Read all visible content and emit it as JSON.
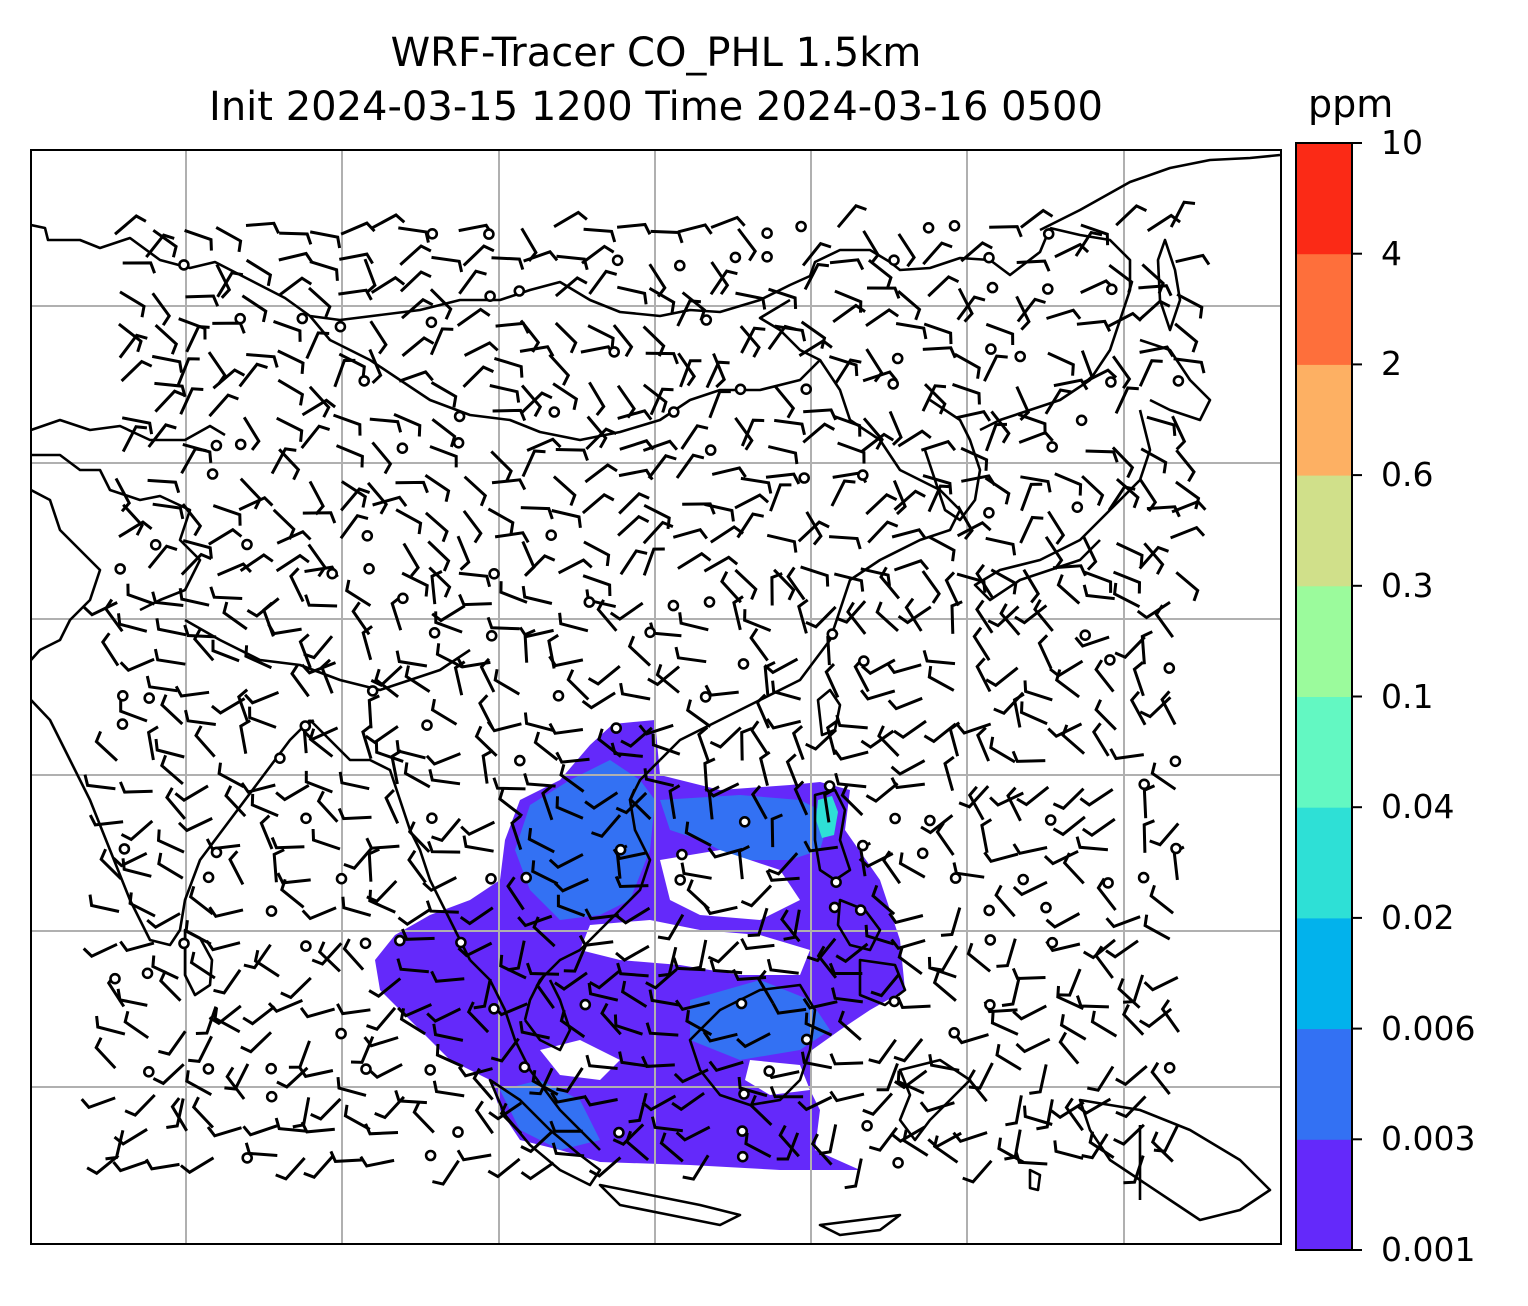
{
  "title_line1": "WRF-Tracer CO_PHL 1.5km",
  "title_line2": "Init 2024-03-15 1200 Time 2024-03-16 0500",
  "colorbar": {
    "unit": "ppm",
    "levels": [
      {
        "label": "0.001",
        "color": "#6429fa"
      },
      {
        "label": "0.003",
        "color": "#3371f3"
      },
      {
        "label": "0.006",
        "color": "#02b2ec"
      },
      {
        "label": "0.02",
        "color": "#2ee0d6"
      },
      {
        "label": "0.04",
        "color": "#63f8c2"
      },
      {
        "label": "0.1",
        "color": "#9bfb9c"
      },
      {
        "label": "0.3",
        "color": "#d0e08a"
      },
      {
        "label": "0.6",
        "color": "#fdb063"
      },
      {
        "label": "2",
        "color": "#fe6f3b"
      },
      {
        "label": "4",
        "color": "#fb2a16"
      },
      {
        "label": "10",
        "color": null
      }
    ]
  },
  "map": {
    "gridlines": true,
    "coastline_color": "#000000",
    "gridline_color": "#b0b0b0",
    "plume_primary_color": "#6429fa",
    "plume_secondary_color": "#3371f3",
    "plume_hotspot_color": "#2ee0d6"
  }
}
